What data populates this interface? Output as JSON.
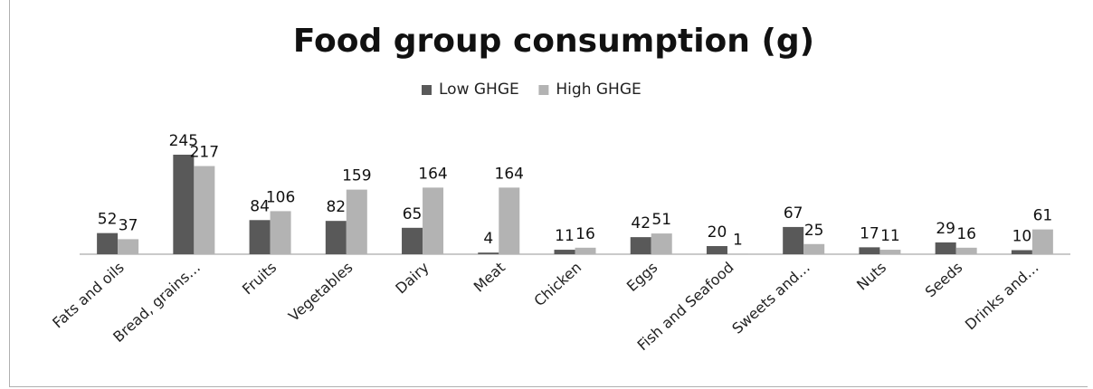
{
  "chart_data": {
    "type": "bar",
    "title": "Food group consumption (g)",
    "categories": [
      "Fats and oils",
      "Bread, grains…",
      "Fruits",
      "Vegetables",
      "Dairy",
      "Meat",
      "Chicken",
      "Eggs",
      "Fish and Seafood",
      "Sweets and…",
      "Nuts",
      "Seeds",
      "Drinks and…"
    ],
    "series": [
      {
        "name": "Low GHGE",
        "values": [
          52,
          245,
          84,
          82,
          65,
          4,
          11,
          42,
          20,
          67,
          17,
          29,
          10
        ],
        "color": "#595959"
      },
      {
        "name": "High GHGE",
        "values": [
          37,
          217,
          106,
          159,
          164,
          164,
          16,
          51,
          1,
          25,
          11,
          16,
          61
        ],
        "color": "#b3b3b3"
      }
    ],
    "xlabel": "",
    "ylabel": "",
    "ylim": [
      0,
      245
    ],
    "grid": false,
    "legend": "top-center",
    "data_labels": true
  }
}
